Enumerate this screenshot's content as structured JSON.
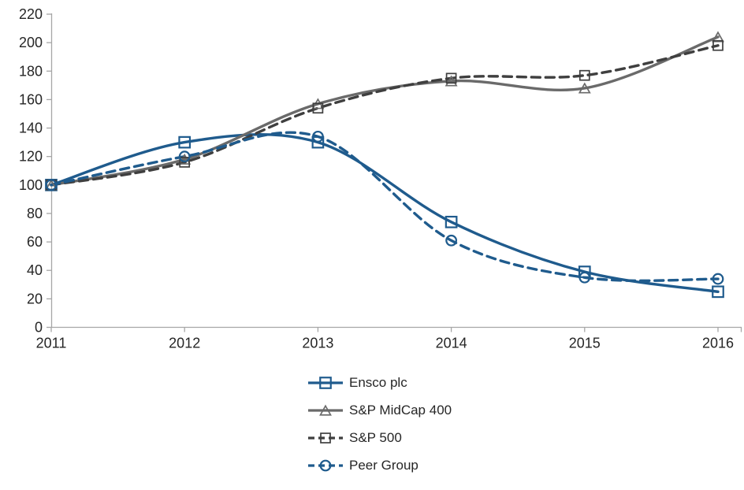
{
  "chart_data": {
    "type": "line",
    "title": "",
    "xlabel": "",
    "ylabel": "",
    "x_labels": [
      "2011",
      "2012",
      "2013",
      "2014",
      "2015",
      "2016"
    ],
    "y_tick_labels": [
      "0",
      "20",
      "40",
      "60",
      "80",
      "100",
      "120",
      "140",
      "160",
      "180",
      "200",
      "220"
    ],
    "ylim": [
      0,
      220
    ],
    "y_tick_step": 20,
    "grid": false,
    "legend_position": "below-plot, vertical, left-of-center",
    "background_color": "#FFFFFF",
    "axis_color": "#A6A6A6",
    "text_color": "#262626",
    "series": [
      {
        "name": "Ensco plc",
        "marker": "square",
        "line": "solid",
        "color": "#1F5B8D",
        "values": [
          100,
          130,
          130,
          74,
          39,
          25
        ]
      },
      {
        "name": "S&P MidCap 400",
        "marker": "triangle",
        "line": "solid",
        "color": "#6A6A6A",
        "values": [
          100,
          118,
          157,
          173,
          168,
          204
        ]
      },
      {
        "name": "S&P 500",
        "marker": "square",
        "line": "dashed",
        "color": "#3F3F3F",
        "values": [
          100,
          116,
          154,
          175,
          177,
          198
        ]
      },
      {
        "name": "Peer Group",
        "marker": "circle",
        "line": "dashed",
        "color": "#1F5B8D",
        "values": [
          100,
          120,
          134,
          61,
          35,
          34
        ]
      }
    ]
  }
}
